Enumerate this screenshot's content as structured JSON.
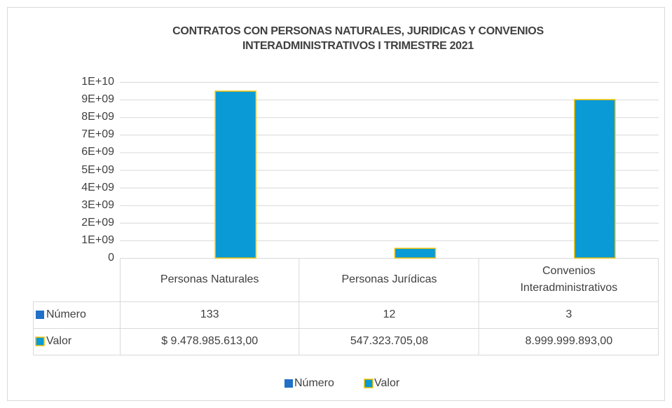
{
  "chart_data": {
    "type": "bar",
    "title": "CONTRATOS CON PERSONAS NATURALES, JURIDICAS Y CONVENIOS INTERADMINISTRATIVOS I TRIMESTRE 2021",
    "categories": [
      "Personas Naturales",
      "Personas Jurídicas",
      "Convenios Interadministrativos"
    ],
    "series": [
      {
        "name": "Número",
        "color": "#2070c8",
        "values": [
          133,
          12,
          3
        ]
      },
      {
        "name": "Valor",
        "color": "#0a9ad6",
        "edgecolor": "#f0c000",
        "values": [
          9478985613,
          547323705.08,
          8999999893
        ],
        "value_labels": [
          "$ 9.478.985.613,00",
          "547.323.705,08",
          "8.999.999.893,00"
        ]
      }
    ],
    "ylim": [
      0,
      10000000000
    ],
    "yticks": [
      0,
      {
        "value": 1000000000,
        "label": "1E+09"
      },
      {
        "value": 2000000000,
        "label": "2E+09"
      },
      {
        "value": 3000000000,
        "label": "3E+09"
      },
      {
        "value": 4000000000,
        "label": "4E+09"
      },
      {
        "value": 5000000000,
        "label": "5E+09"
      },
      {
        "value": 6000000000,
        "label": "6E+09"
      },
      {
        "value": 7000000000,
        "label": "7E+09"
      },
      {
        "value": 8000000000,
        "label": "8E+09"
      },
      {
        "value": 9000000000,
        "label": "9E+09"
      },
      {
        "value": 10000000000,
        "label": "1E+10"
      }
    ],
    "grid": true,
    "data_table": true,
    "legend": "bottom"
  }
}
